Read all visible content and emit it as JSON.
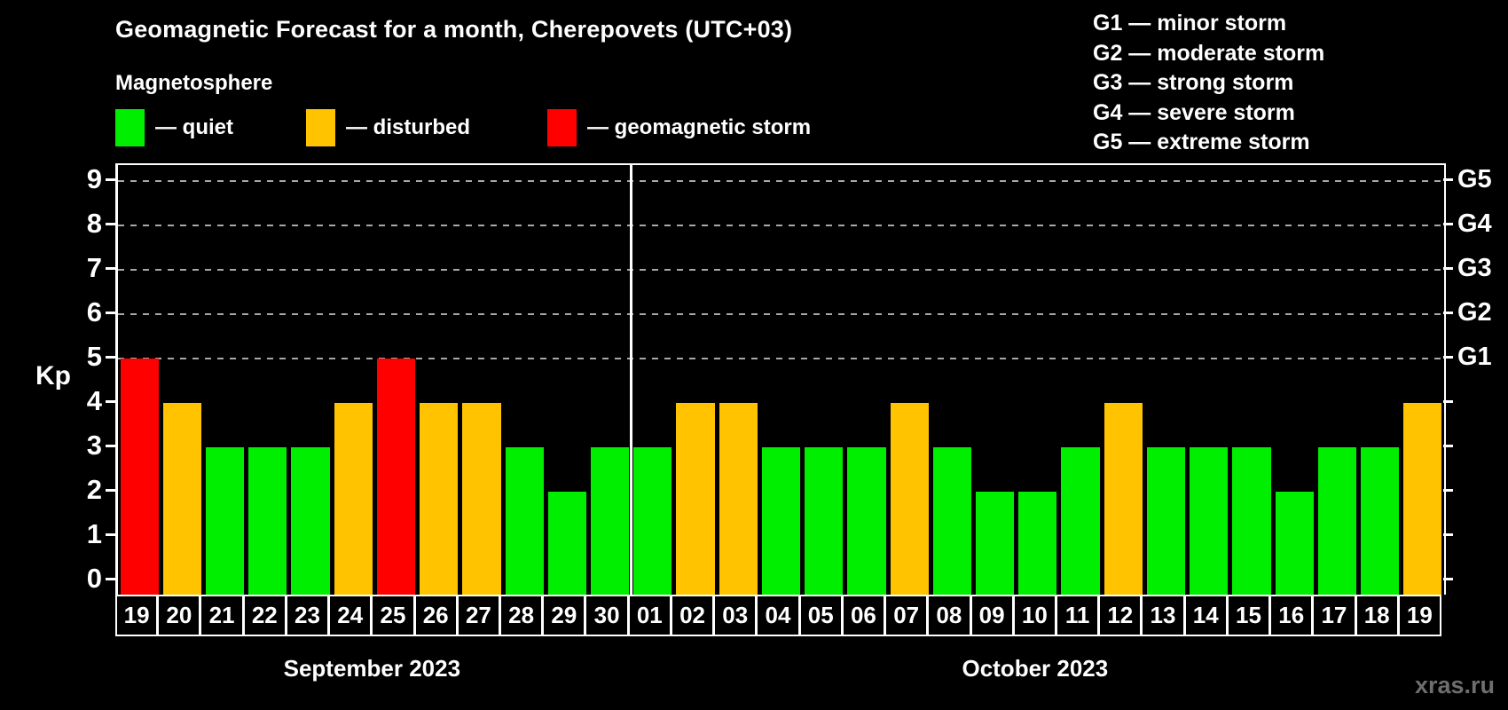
{
  "header": {
    "title": "Geomagnetic Forecast for a month, Cherepovets (UTC+03)",
    "subtitle": "Magnetosphere"
  },
  "legend": {
    "items": [
      {
        "key": "quiet",
        "label": "— quiet",
        "color": "#00ee00",
        "x": 130
      },
      {
        "key": "disturbed",
        "label": "— disturbed",
        "color": "#ffc300",
        "x": 345
      },
      {
        "key": "storm",
        "label": "— geomagnetic storm",
        "color": "#ff0000",
        "x": 617
      }
    ]
  },
  "g_legend": {
    "lines": [
      "G1 — minor storm",
      "G2 — moderate storm",
      "G3 — strong storm",
      "G4 — severe storm",
      "G5 — extreme storm"
    ]
  },
  "watermark": "xras.ru",
  "chart_data": {
    "type": "bar",
    "title": "Geomagnetic Forecast for a month, Cherepovets (UTC+03)",
    "xlabel": "",
    "ylabel": "Kp",
    "ylim": [
      0,
      9
    ],
    "yticks": [
      0,
      1,
      2,
      3,
      4,
      5,
      6,
      7,
      8,
      9
    ],
    "gridlines_at": [
      5,
      6,
      7,
      8,
      9
    ],
    "grid": "dashed",
    "legend_position": "top-left",
    "right_axis": [
      {
        "value": 5,
        "label": "G1"
      },
      {
        "value": 6,
        "label": "G2"
      },
      {
        "value": 7,
        "label": "G3"
      },
      {
        "value": 8,
        "label": "G4"
      },
      {
        "value": 9,
        "label": "G5"
      }
    ],
    "status_colors": {
      "quiet": "#00ee00",
      "disturbed": "#ffc300",
      "storm": "#ff0000"
    },
    "months": [
      {
        "label": "September 2023",
        "start_index": 0,
        "count": 12
      },
      {
        "label": "October 2023",
        "start_index": 12,
        "count": 19
      }
    ],
    "bars": [
      {
        "day": "19",
        "kp": 5,
        "status": "storm"
      },
      {
        "day": "20",
        "kp": 4,
        "status": "disturbed"
      },
      {
        "day": "21",
        "kp": 3,
        "status": "quiet"
      },
      {
        "day": "22",
        "kp": 3,
        "status": "quiet"
      },
      {
        "day": "23",
        "kp": 3,
        "status": "quiet"
      },
      {
        "day": "24",
        "kp": 4,
        "status": "disturbed"
      },
      {
        "day": "25",
        "kp": 5,
        "status": "storm"
      },
      {
        "day": "26",
        "kp": 4,
        "status": "disturbed"
      },
      {
        "day": "27",
        "kp": 4,
        "status": "disturbed"
      },
      {
        "day": "28",
        "kp": 3,
        "status": "quiet"
      },
      {
        "day": "29",
        "kp": 2,
        "status": "quiet"
      },
      {
        "day": "30",
        "kp": 3,
        "status": "quiet"
      },
      {
        "day": "01",
        "kp": 3,
        "status": "quiet"
      },
      {
        "day": "02",
        "kp": 4,
        "status": "disturbed"
      },
      {
        "day": "03",
        "kp": 4,
        "status": "disturbed"
      },
      {
        "day": "04",
        "kp": 3,
        "status": "quiet"
      },
      {
        "day": "05",
        "kp": 3,
        "status": "quiet"
      },
      {
        "day": "06",
        "kp": 3,
        "status": "quiet"
      },
      {
        "day": "07",
        "kp": 4,
        "status": "disturbed"
      },
      {
        "day": "08",
        "kp": 3,
        "status": "quiet"
      },
      {
        "day": "09",
        "kp": 2,
        "status": "quiet"
      },
      {
        "day": "10",
        "kp": 2,
        "status": "quiet"
      },
      {
        "day": "11",
        "kp": 3,
        "status": "quiet"
      },
      {
        "day": "12",
        "kp": 4,
        "status": "disturbed"
      },
      {
        "day": "13",
        "kp": 3,
        "status": "quiet"
      },
      {
        "day": "14",
        "kp": 3,
        "status": "quiet"
      },
      {
        "day": "15",
        "kp": 3,
        "status": "quiet"
      },
      {
        "day": "16",
        "kp": 2,
        "status": "quiet"
      },
      {
        "day": "17",
        "kp": 3,
        "status": "quiet"
      },
      {
        "day": "18",
        "kp": 3,
        "status": "quiet"
      },
      {
        "day": "19",
        "kp": 4,
        "status": "disturbed"
      }
    ]
  }
}
